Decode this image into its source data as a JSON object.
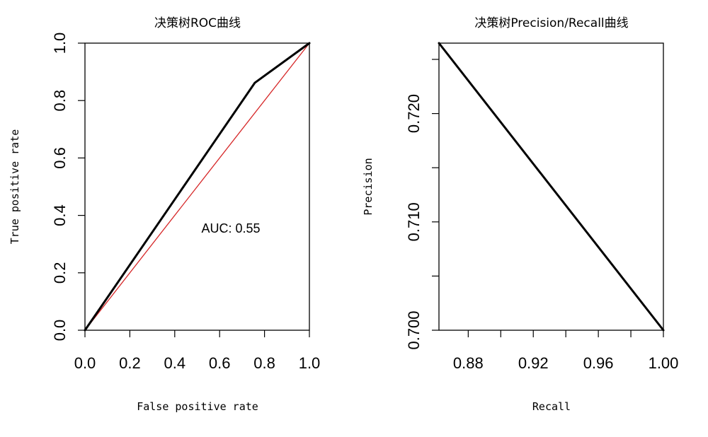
{
  "chart_data": [
    {
      "type": "line",
      "title": "决策树ROC曲线",
      "xlabel": "False positive rate",
      "ylabel": "True positive rate",
      "xlim": [
        0,
        1
      ],
      "ylim": [
        0,
        1
      ],
      "x_ticks": [
        "0.0",
        "0.2",
        "0.4",
        "0.6",
        "0.8",
        "1.0"
      ],
      "y_ticks": [
        "0.0",
        "0.2",
        "0.4",
        "0.6",
        "0.8",
        "1.0"
      ],
      "grid": false,
      "series": [
        {
          "name": "ROC",
          "color": "#000000",
          "x": [
            0,
            0.757,
            1
          ],
          "y": [
            0,
            0.862,
            1
          ]
        },
        {
          "name": "diagonal",
          "color": "#d62728",
          "x": [
            0,
            1
          ],
          "y": [
            0,
            1
          ]
        }
      ],
      "annotation": {
        "text": "AUC: 0.55",
        "x": 0.65,
        "y": 0.34
      }
    },
    {
      "type": "line",
      "title": "决策树Precision/Recall曲线",
      "xlabel": "Recall",
      "ylabel": "Precision",
      "xlim": [
        0.862,
        1.0
      ],
      "ylim": [
        0.7,
        0.7265
      ],
      "x_ticks": [
        "0.88",
        "0.92",
        "0.96",
        "1.00"
      ],
      "x_minor_ticks": [
        0.9,
        0.94,
        0.98
      ],
      "y_ticks": [
        "0.700",
        "0.710",
        "0.720"
      ],
      "y_minor_ticks": [
        0.705,
        0.715,
        0.725
      ],
      "grid": false,
      "series": [
        {
          "name": "PR",
          "color": "#000000",
          "x": [
            0.862,
            1.0
          ],
          "y": [
            0.7265,
            0.7
          ]
        }
      ]
    }
  ]
}
